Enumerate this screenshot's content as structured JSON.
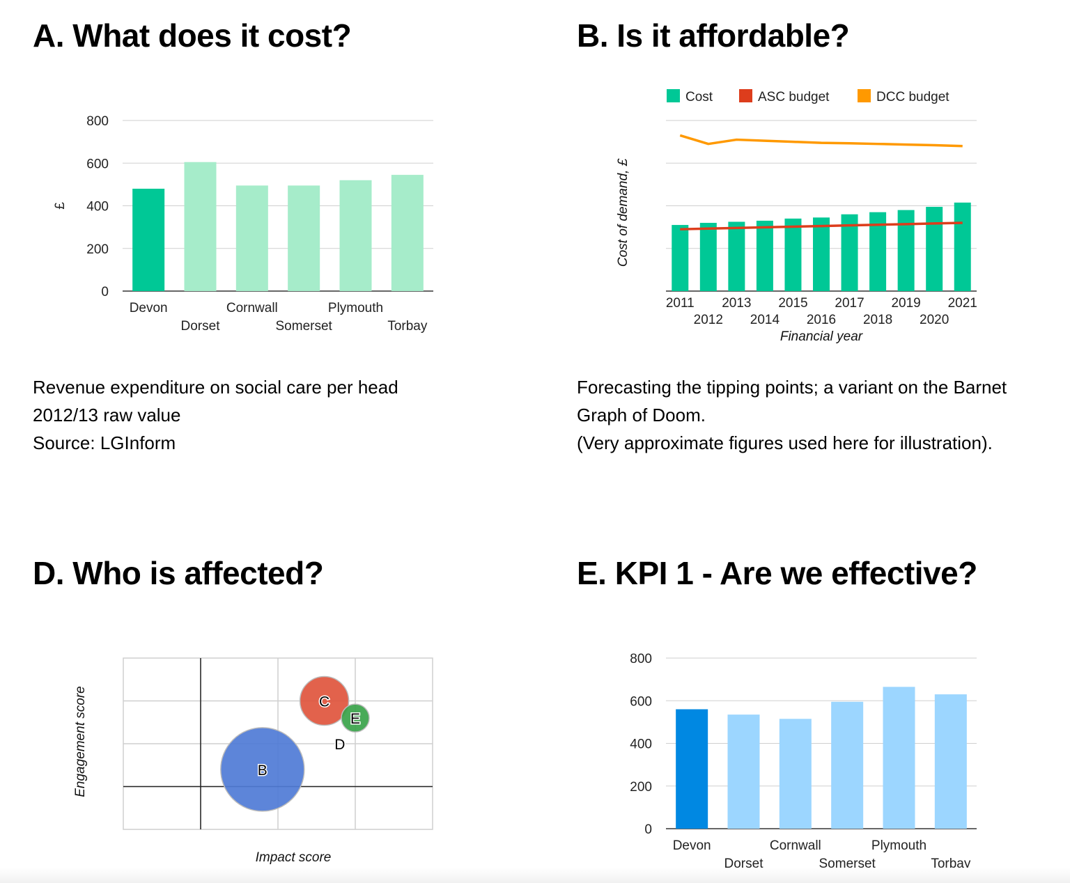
{
  "panels": {
    "a": {
      "title": "A. What does it cost?",
      "description": [
        "Revenue expenditure on social care per head",
        "2012/13 raw value",
        "Source: LGInform"
      ]
    },
    "b": {
      "title": "B. Is it affordable?",
      "description": [
        "Forecasting the tipping points; a variant on the Barnet",
        "Graph of Doom.",
        "(Very approximate figures used here for illustration)."
      ]
    },
    "d": {
      "title": "D. Who is affected?"
    },
    "e": {
      "title": "E. KPI 1 - Are we effective?"
    }
  },
  "chart_data": [
    {
      "id": "chart-a",
      "type": "bar",
      "categories": [
        "Devon",
        "Dorset",
        "Cornwall",
        "Somerset",
        "Plymouth",
        "Torbay"
      ],
      "values": [
        480,
        605,
        495,
        495,
        520,
        545
      ],
      "highlight_index": 0,
      "colors": {
        "highlight": "#00c896",
        "bar": "#a6ecca"
      },
      "ylabel": "£",
      "ylim": [
        0,
        800
      ],
      "yticks": [
        0,
        200,
        400,
        600,
        800
      ],
      "grid": true
    },
    {
      "id": "chart-b",
      "type": "bar",
      "categories": [
        "2011",
        "2012",
        "2013",
        "2014",
        "2015",
        "2016",
        "2017",
        "2018",
        "2019",
        "2020",
        "2021"
      ],
      "series": [
        {
          "name": "Cost",
          "kind": "bar",
          "color": "#00c896",
          "values": [
            31,
            32,
            32.5,
            33,
            34,
            34.5,
            36,
            37,
            38,
            39.5,
            41.5
          ]
        },
        {
          "name": "ASC budget",
          "kind": "line",
          "color": "#dd3d1c",
          "values": [
            29,
            29.3,
            29.6,
            29.9,
            30.2,
            30.5,
            30.8,
            31.1,
            31.4,
            31.7,
            32
          ]
        },
        {
          "name": "DCC budget",
          "kind": "line",
          "color": "#ff9900",
          "values": [
            73,
            69,
            71,
            70.5,
            70,
            69.5,
            69.3,
            69,
            68.7,
            68.4,
            68
          ]
        }
      ],
      "xlabel": "Financial year",
      "ylabel": "Cost of demand, £",
      "ylim": [
        0,
        80
      ],
      "grid": true,
      "legend_position": "top"
    },
    {
      "id": "chart-d",
      "type": "scatter",
      "subtype": "bubble",
      "xlabel": "Impact score",
      "ylabel": "Engagement score",
      "xlim": [
        0,
        8
      ],
      "ylim": [
        0,
        8
      ],
      "grid": true,
      "baseline": {
        "x": 2,
        "y": 2
      },
      "points": [
        {
          "label": "B",
          "x": 3.6,
          "y": 2.8,
          "size": 60,
          "color": "#4f7bd6"
        },
        {
          "label": "C",
          "x": 5.2,
          "y": 6.0,
          "size": 35,
          "color": "#e0553d"
        },
        {
          "label": "D",
          "x": 5.6,
          "y": 4.0,
          "size": 0,
          "color": "#ffffff"
        },
        {
          "label": "E",
          "x": 6.0,
          "y": 5.2,
          "size": 20,
          "color": "#3aa34a"
        }
      ]
    },
    {
      "id": "chart-e",
      "type": "bar",
      "categories": [
        "Devon",
        "Dorset",
        "Cornwall",
        "Somerset",
        "Plymouth",
        "Torbay"
      ],
      "values": [
        560,
        535,
        515,
        595,
        665,
        630
      ],
      "highlight_index": 0,
      "colors": {
        "highlight": "#0088e2",
        "bar": "#9cd6ff"
      },
      "ylim": [
        0,
        800
      ],
      "yticks": [
        0,
        200,
        400,
        600,
        800
      ],
      "grid": true
    }
  ]
}
